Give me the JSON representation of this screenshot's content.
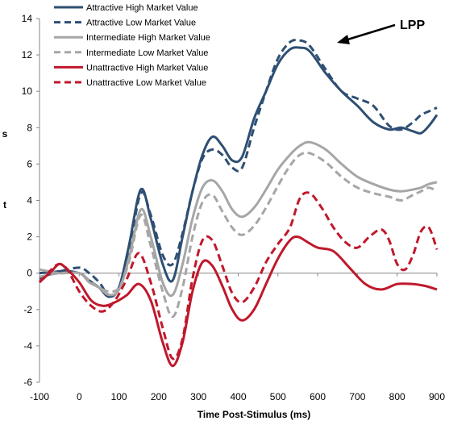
{
  "chart_data": {
    "type": "line",
    "title": "",
    "xlabel": "Time Post-Stimulus (ms)",
    "ylabel": "t",
    "ylabel_secondary": "s",
    "xlim": [
      -100,
      900
    ],
    "ylim": [
      -6,
      14
    ],
    "x_ticks": [
      -100,
      0,
      100,
      200,
      300,
      400,
      500,
      600,
      700,
      800,
      900
    ],
    "y_ticks": [
      -6,
      -4,
      -2,
      0,
      2,
      4,
      6,
      8,
      10,
      12,
      14
    ],
    "grid": false,
    "legend_position": "top-left",
    "annotation": "LPP",
    "series": [
      {
        "name": "Attractive High Market Value",
        "color": "#2e4f73",
        "dash": "solid",
        "x": [
          -100,
          -50,
          0,
          25,
          50,
          75,
          100,
          125,
          155,
          180,
          210,
          235,
          260,
          285,
          310,
          335,
          360,
          385,
          410,
          440,
          470,
          500,
          530,
          555,
          580,
          620,
          660,
          700,
          740,
          780,
          810,
          840,
          860,
          880,
          900
        ],
        "y": [
          -0.3,
          0.1,
          0.0,
          -0.4,
          -0.8,
          -1.3,
          -0.8,
          1.5,
          4.6,
          3.0,
          0.5,
          -0.4,
          2.0,
          4.5,
          6.5,
          7.5,
          7.0,
          6.2,
          6.4,
          8.5,
          10.0,
          11.5,
          12.3,
          12.4,
          12.2,
          11.0,
          10.0,
          9.2,
          8.3,
          7.9,
          8.0,
          7.8,
          7.7,
          8.1,
          8.7
        ]
      },
      {
        "name": "Attractive Low Market Value",
        "color": "#2e4f73",
        "dash": "dash",
        "x": [
          -100,
          -50,
          0,
          25,
          50,
          75,
          100,
          125,
          155,
          180,
          210,
          235,
          260,
          285,
          310,
          335,
          360,
          385,
          410,
          440,
          470,
          500,
          530,
          555,
          580,
          620,
          660,
          700,
          740,
          780,
          810,
          840,
          860,
          880,
          900
        ],
        "y": [
          0.0,
          0.1,
          0.3,
          0.0,
          -0.5,
          -1.2,
          -0.8,
          1.2,
          4.4,
          3.2,
          1.0,
          0.5,
          2.2,
          4.5,
          6.3,
          6.8,
          6.5,
          5.8,
          5.8,
          8.0,
          10.0,
          11.8,
          12.7,
          12.8,
          12.5,
          11.2,
          10.0,
          9.6,
          9.2,
          8.1,
          7.9,
          8.3,
          8.7,
          8.9,
          9.1
        ]
      },
      {
        "name": "Intermediate High Market Value",
        "color": "#a6a6a6",
        "dash": "solid",
        "x": [
          -100,
          -50,
          0,
          25,
          50,
          75,
          100,
          125,
          155,
          180,
          210,
          235,
          260,
          285,
          310,
          335,
          360,
          385,
          410,
          440,
          470,
          500,
          530,
          555,
          580,
          620,
          660,
          700,
          740,
          780,
          810,
          840,
          860,
          880,
          900
        ],
        "y": [
          0.2,
          0.0,
          0.0,
          -0.5,
          -0.8,
          -1.2,
          -0.9,
          0.8,
          3.5,
          2.0,
          -0.5,
          -1.2,
          0.5,
          3.0,
          4.7,
          5.1,
          4.5,
          3.5,
          3.1,
          3.6,
          4.6,
          5.7,
          6.5,
          7.0,
          7.2,
          6.8,
          6.0,
          5.3,
          4.9,
          4.6,
          4.5,
          4.6,
          4.7,
          4.9,
          5.0
        ]
      },
      {
        "name": "Intermediate Low Market Value",
        "color": "#a6a6a6",
        "dash": "dash",
        "x": [
          -100,
          -50,
          0,
          25,
          50,
          75,
          100,
          125,
          155,
          180,
          210,
          235,
          260,
          285,
          310,
          335,
          360,
          385,
          410,
          440,
          470,
          500,
          530,
          555,
          580,
          620,
          660,
          700,
          740,
          780,
          810,
          840,
          860,
          880,
          900
        ],
        "y": [
          -0.2,
          0.0,
          0.0,
          -0.4,
          -0.8,
          -1.0,
          -0.8,
          0.6,
          3.2,
          1.5,
          -1.0,
          -2.4,
          -0.8,
          2.0,
          3.9,
          4.3,
          3.4,
          2.5,
          2.1,
          2.6,
          3.6,
          4.8,
          5.9,
          6.5,
          6.6,
          6.1,
          5.3,
          4.7,
          4.4,
          4.2,
          4.0,
          4.3,
          4.5,
          4.7,
          4.5
        ]
      },
      {
        "name": "Unattractive High Market Value",
        "color": "#c0182b",
        "dash": "solid",
        "x": [
          -100,
          -70,
          -50,
          -30,
          0,
          30,
          60,
          90,
          120,
          150,
          180,
          210,
          235,
          260,
          285,
          310,
          335,
          360,
          385,
          410,
          440,
          470,
          500,
          530,
          550,
          575,
          600,
          640,
          680,
          720,
          760,
          800,
          840,
          870,
          900
        ],
        "y": [
          -0.5,
          0.1,
          0.5,
          0.2,
          -0.5,
          -1.5,
          -1.8,
          -1.6,
          -1.2,
          -0.6,
          -1.5,
          -3.8,
          -5.1,
          -3.8,
          -1.0,
          0.6,
          0.4,
          -0.7,
          -2.0,
          -2.6,
          -2.0,
          -0.6,
          0.8,
          1.8,
          2.0,
          1.7,
          1.4,
          1.2,
          0.3,
          -0.6,
          -0.9,
          -0.6,
          -0.6,
          -0.7,
          -0.9
        ]
      },
      {
        "name": "Unattractive Low Market Value",
        "color": "#c0182b",
        "dash": "dash",
        "x": [
          -100,
          -70,
          -50,
          -30,
          0,
          30,
          60,
          90,
          120,
          150,
          180,
          210,
          235,
          260,
          285,
          310,
          335,
          360,
          385,
          410,
          440,
          470,
          500,
          530,
          555,
          580,
          610,
          640,
          670,
          700,
          730,
          760,
          780,
          800,
          820,
          840,
          860,
          880,
          900
        ],
        "y": [
          -0.5,
          0.2,
          0.5,
          0.2,
          -1.0,
          -1.8,
          -2.1,
          -1.5,
          -0.3,
          1.1,
          -0.5,
          -3.0,
          -4.7,
          -3.6,
          -0.3,
          1.8,
          1.8,
          0.4,
          -1.1,
          -1.6,
          -0.8,
          0.6,
          1.6,
          2.5,
          4.1,
          4.4,
          3.6,
          2.5,
          1.7,
          1.4,
          2.0,
          2.4,
          1.8,
          0.5,
          0.2,
          1.0,
          2.3,
          2.5,
          1.3
        ]
      }
    ]
  }
}
